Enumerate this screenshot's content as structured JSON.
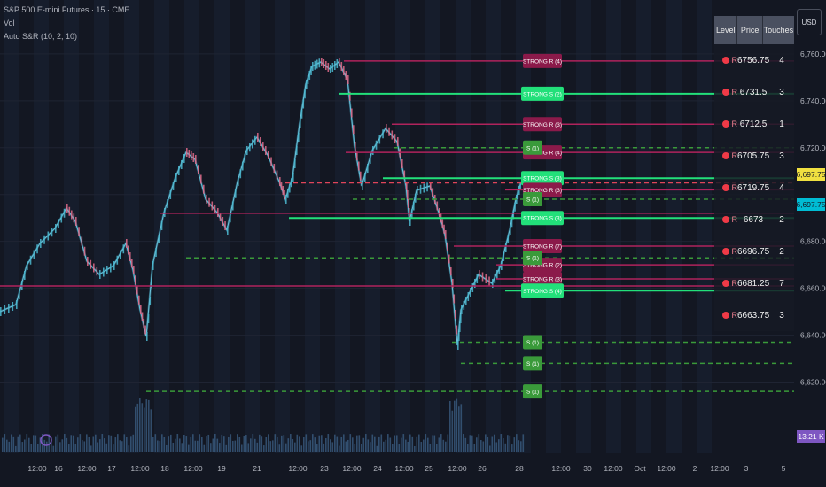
{
  "header": {
    "symbol_line": "S&P 500 E-mini Futures · 15 · CME",
    "vol_label": "Vol",
    "indicator_label": "Auto S&R (10, 2, 10)"
  },
  "currency_button": "USD",
  "y_axis": {
    "ticks": [
      "6,760.00",
      "6,740.00",
      "6,720.00",
      "6,680.00",
      "6,660.00",
      "6,640.00",
      "6,620.00"
    ]
  },
  "x_axis": {
    "ticks": [
      "12:00",
      "16",
      "12:00",
      "17",
      "12:00",
      "18",
      "12:00",
      "19",
      "21",
      "12:00",
      "23",
      "12:00",
      "24",
      "12:00",
      "25",
      "12:00",
      "26",
      "28",
      "12:00",
      "30",
      "12:00",
      "Oct",
      "12:00",
      "2",
      "12:00",
      "3",
      "5"
    ]
  },
  "price_badges": {
    "last": "6,697.75",
    "prev": "6,697.75",
    "volume": "13.21 K"
  },
  "sr_table": {
    "headers": [
      "Level",
      "Price",
      "Touches"
    ],
    "rows": [
      {
        "type": "R",
        "price": "6756.75",
        "touches": "4"
      },
      {
        "type": "R",
        "price": "6731.5",
        "touches": "3"
      },
      {
        "type": "R",
        "price": "6712.5",
        "touches": "1"
      },
      {
        "type": "R",
        "price": "6705.75",
        "touches": "3"
      },
      {
        "type": "R",
        "price": "6719.75",
        "touches": "4"
      },
      {
        "type": "R",
        "price": "6673",
        "touches": "2"
      },
      {
        "type": "R",
        "price": "6696.75",
        "touches": "2"
      },
      {
        "type": "R",
        "price": "6681.25",
        "touches": "7"
      },
      {
        "type": "R",
        "price": "6663.75",
        "touches": "3"
      }
    ]
  },
  "level_tags": [
    {
      "text": "STRONG R (4)",
      "kind": "strong_r",
      "price": 6757
    },
    {
      "text": "STRONG S (2)",
      "kind": "strong_s",
      "price": 6743
    },
    {
      "text": "STRONG R (3)",
      "kind": "strong_r",
      "price": 6730
    },
    {
      "text": "STRONG R (4)",
      "kind": "strong_r",
      "price": 6718
    },
    {
      "text": "S (1)",
      "kind": "s",
      "price": 6720
    },
    {
      "text": "STRONG S (3)",
      "kind": "strong_s",
      "price": 6707
    },
    {
      "text": "STRONG R (3)",
      "kind": "strong_r",
      "price": 6702
    },
    {
      "text": "S (1)",
      "kind": "s",
      "price": 6698
    },
    {
      "text": "STRONG S (3)",
      "kind": "strong_s",
      "price": 6690
    },
    {
      "text": "STRONG R (7)",
      "kind": "strong_r",
      "price": 6678
    },
    {
      "text": "STRONG R (2)",
      "kind": "strong_r",
      "price": 6670
    },
    {
      "text": "S (1)",
      "kind": "s",
      "price": 6673
    },
    {
      "text": "STRONG R (3)",
      "kind": "strong_r",
      "price": 6664
    },
    {
      "text": "STRONG S (4)",
      "kind": "strong_s",
      "price": 6659
    },
    {
      "text": "S (1)",
      "kind": "s",
      "price": 6637
    },
    {
      "text": "S (1)",
      "kind": "s",
      "price": 6628
    },
    {
      "text": "S (1)",
      "kind": "s",
      "price": 6616
    }
  ],
  "chart_data": {
    "type": "candlestick",
    "x": [
      "15 12:00",
      "16",
      "16 12:00",
      "17",
      "17 12:00",
      "18",
      "18 12:00",
      "19",
      "21",
      "22 12:00",
      "23",
      "23 12:00",
      "24",
      "24 12:00",
      "25",
      "25 12:00",
      "26",
      "26 12:00",
      "27"
    ],
    "close": [
      6661,
      6670,
      6688,
      6672,
      6664,
      6690,
      6705,
      6694,
      6710,
      6715,
      6750,
      6755,
      6720,
      6722,
      6705,
      6693,
      6676,
      6668,
      6690
    ],
    "ylim": [
      6610,
      6766
    ],
    "grid": true,
    "levels": [
      {
        "price": 6757,
        "kind": "resistance",
        "touches": 4
      },
      {
        "price": 6743,
        "kind": "support",
        "touches": 2
      },
      {
        "price": 6730,
        "kind": "resistance",
        "touches": 3
      },
      {
        "price": 6720,
        "kind": "support",
        "touches": 1
      },
      {
        "price": 6718,
        "kind": "resistance",
        "touches": 4
      },
      {
        "price": 6707,
        "kind": "support",
        "touches": 3
      },
      {
        "price": 6705,
        "kind": "resistance",
        "touches": 3
      },
      {
        "price": 6702,
        "kind": "resistance",
        "touches": 3
      },
      {
        "price": 6698,
        "kind": "support",
        "touches": 1
      },
      {
        "price": 6692,
        "kind": "resistance",
        "touches": 2
      },
      {
        "price": 6690,
        "kind": "support",
        "touches": 3
      },
      {
        "price": 6678,
        "kind": "resistance",
        "touches": 7
      },
      {
        "price": 6673,
        "kind": "support",
        "touches": 1
      },
      {
        "price": 6670,
        "kind": "resistance",
        "touches": 2
      },
      {
        "price": 6664,
        "kind": "resistance",
        "touches": 3
      },
      {
        "price": 6661,
        "kind": "resistance",
        "touches": 3
      },
      {
        "price": 6659,
        "kind": "support",
        "touches": 4
      },
      {
        "price": 6637,
        "kind": "support",
        "touches": 1
      },
      {
        "price": 6628,
        "kind": "support",
        "touches": 1
      },
      {
        "price": 6616,
        "kind": "support",
        "touches": 1
      }
    ]
  },
  "colors": {
    "background": "#131722",
    "resistance": "#b0235c",
    "strong_r_tag": "#8b1a4a",
    "support_solid": "#22e07a",
    "support_dashed": "#3a9a3a",
    "s_tag": "#3a9a3a",
    "candle_up": "#4cb8d0",
    "candle_down": "#e06a88",
    "current_price": "#f0e040"
  }
}
